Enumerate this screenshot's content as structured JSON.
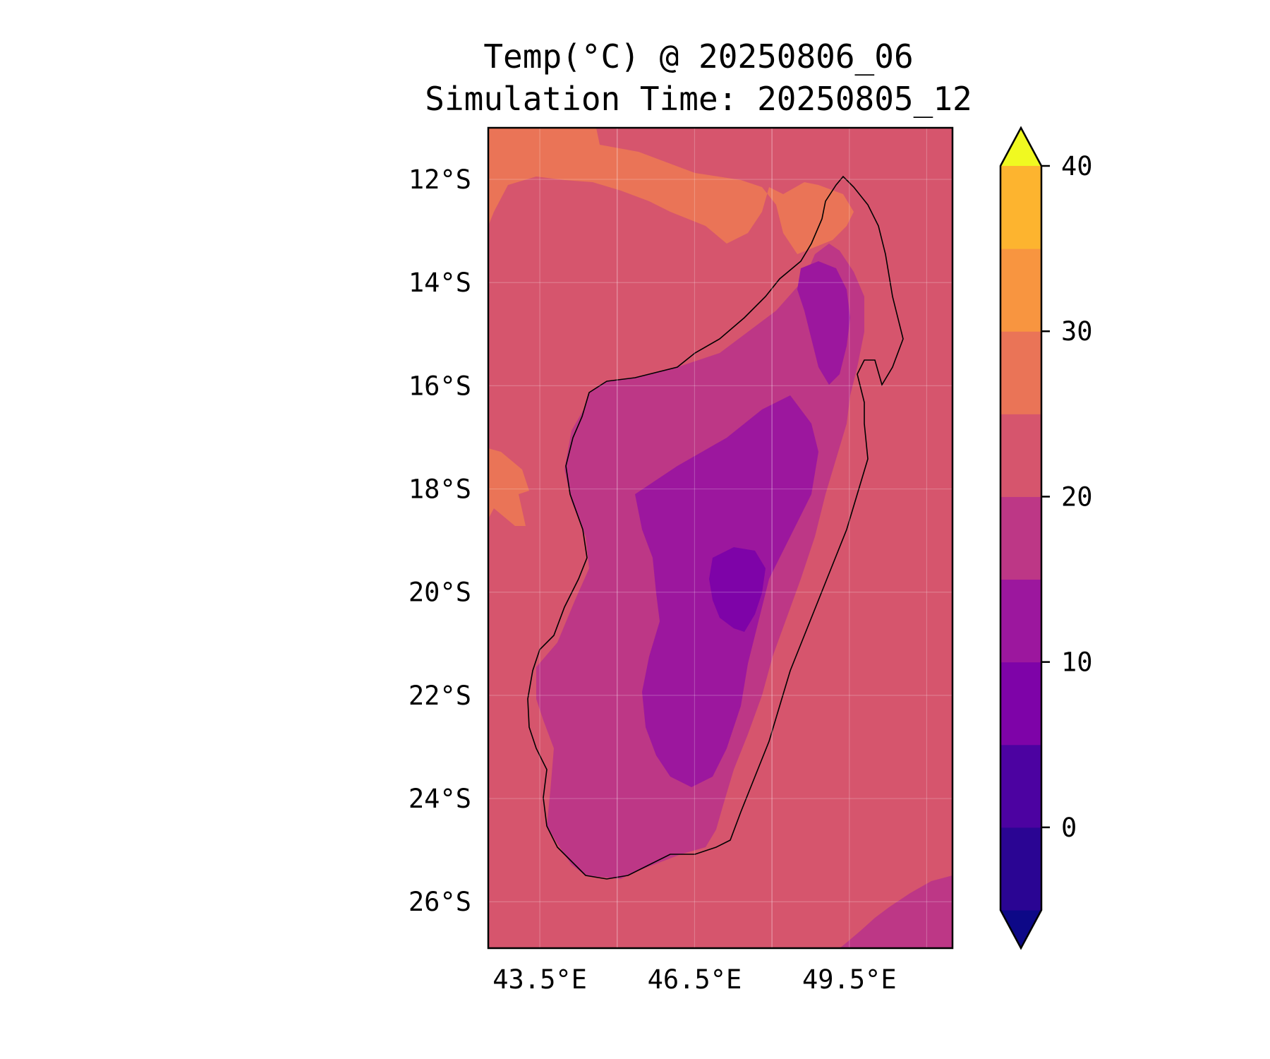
{
  "title": {
    "line1": "Temp(°C) @ 20250806_06",
    "line2": "Simulation Time: 20250805_12"
  },
  "map": {
    "extent": {
      "lon_min": 42.5,
      "lon_max": 51.5,
      "lat_min": -26.9,
      "lat_max": -11.0
    },
    "lat_ticks": [
      {
        "value": -12,
        "label": "12°S"
      },
      {
        "value": -14,
        "label": "14°S"
      },
      {
        "value": -16,
        "label": "16°S"
      },
      {
        "value": -18,
        "label": "18°S"
      },
      {
        "value": -20,
        "label": "20°S"
      },
      {
        "value": -22,
        "label": "22°S"
      },
      {
        "value": -24,
        "label": "24°S"
      },
      {
        "value": -26,
        "label": "26°S"
      }
    ],
    "lon_ticks": [
      {
        "value": 43.5,
        "label": "43.5°E"
      },
      {
        "value": 46.5,
        "label": "46.5°E"
      },
      {
        "value": 49.5,
        "label": "49.5°E"
      }
    ],
    "gridlines": true,
    "background_color": "#d6556d"
  },
  "colorbar": {
    "levels": [
      -5,
      0,
      5,
      10,
      15,
      20,
      25,
      30,
      35,
      40
    ],
    "colors": [
      "#0d0887",
      "#2a0593",
      "#4c02a1",
      "#7e03a8",
      "#9c179e",
      "#bd3786",
      "#d6556d",
      "#ea7457",
      "#f89540",
      "#fdb42f",
      "#f3e526",
      "#f0f921"
    ],
    "extend": "both",
    "ticks": [
      {
        "value": 0,
        "label": "0"
      },
      {
        "value": 10,
        "label": "10"
      },
      {
        "value": 20,
        "label": "20"
      },
      {
        "value": 30,
        "label": "30"
      },
      {
        "value": 40,
        "label": "40"
      }
    ]
  },
  "field_colors": {
    "warm_sea": "#ea7457",
    "sea": "#d6556d",
    "land_mid": "#bd3786",
    "highland": "#9c179e",
    "peak": "#7e03a8"
  }
}
